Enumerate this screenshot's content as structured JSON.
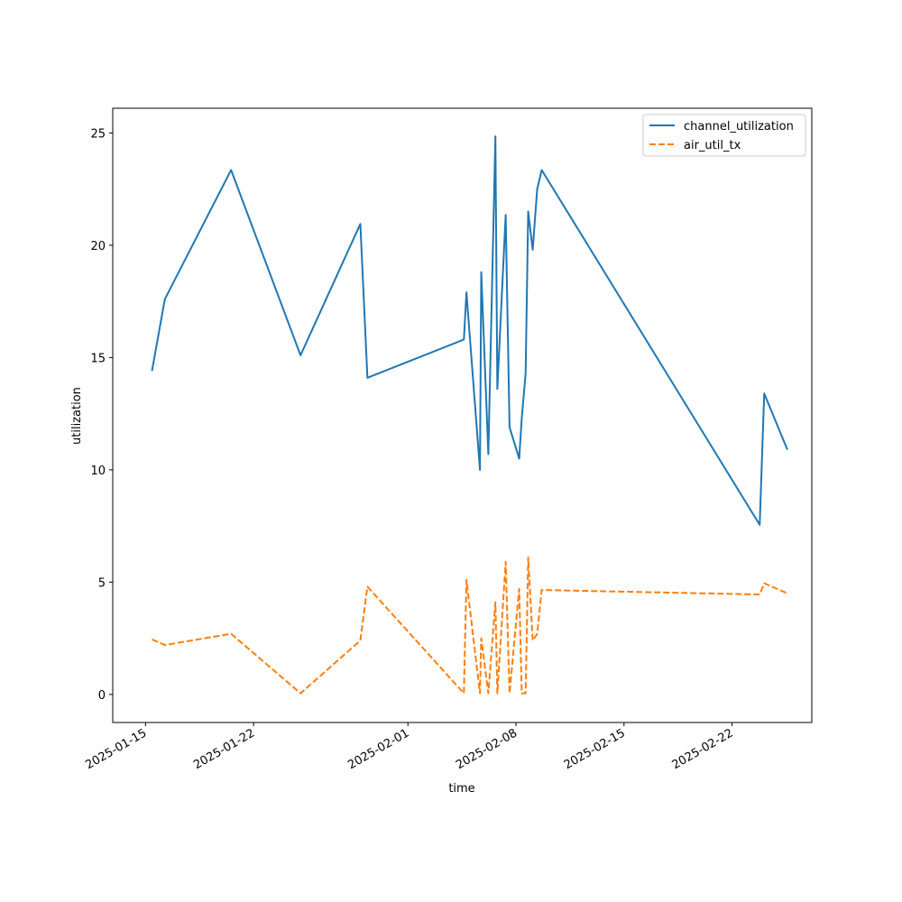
{
  "chart_data": {
    "type": "line",
    "title": "",
    "xlabel": "time",
    "ylabel": "utilization",
    "xlim": [
      "2025-01-12T21:00",
      "2025-02-27T04:00"
    ],
    "ylim": [
      -1.25,
      26.1
    ],
    "y_ticks": [
      0,
      5,
      10,
      15,
      20,
      25
    ],
    "x_ticks": [
      "2025-01-15",
      "2025-01-22",
      "2025-02-01",
      "2025-02-08",
      "2025-02-15",
      "2025-02-22"
    ],
    "grid": false,
    "legend": "top-right",
    "series": [
      {
        "name": "channel_utilization",
        "color": "#1f77b4",
        "style": "solid",
        "points": [
          [
            "2025-01-15T10:00",
            14.4
          ],
          [
            "2025-01-16T06:00",
            17.6
          ],
          [
            "2025-01-20T13:00",
            23.35
          ],
          [
            "2025-01-25T01:00",
            15.1
          ],
          [
            "2025-01-28T22:00",
            20.95
          ],
          [
            "2025-01-29T09:00",
            14.1
          ],
          [
            "2025-02-04T15:00",
            15.8
          ],
          [
            "2025-02-04T19:00",
            17.9
          ],
          [
            "2025-02-05T16:00",
            10.0
          ],
          [
            "2025-02-05T18:00",
            18.8
          ],
          [
            "2025-02-06T05:00",
            10.7
          ],
          [
            "2025-02-06T16:00",
            24.85
          ],
          [
            "2025-02-06T19:00",
            13.6
          ],
          [
            "2025-02-07T08:00",
            21.35
          ],
          [
            "2025-02-07T14:00",
            11.9
          ],
          [
            "2025-02-08T05:00",
            10.5
          ],
          [
            "2025-02-08T09:00",
            12.3
          ],
          [
            "2025-02-08T15:00",
            14.3
          ],
          [
            "2025-02-08T19:00",
            21.5
          ],
          [
            "2025-02-09T02:00",
            19.8
          ],
          [
            "2025-02-09T09:00",
            22.5
          ],
          [
            "2025-02-09T16:00",
            23.35
          ],
          [
            "2025-02-23T19:00",
            7.55
          ],
          [
            "2025-02-24T02:00",
            13.4
          ],
          [
            "2025-02-25T14:00",
            10.9
          ]
        ]
      },
      {
        "name": "air_util_tx",
        "color": "#ff7f0e",
        "style": "dashed",
        "points": [
          [
            "2025-01-15T10:00",
            2.45
          ],
          [
            "2025-01-16T06:00",
            2.2
          ],
          [
            "2025-01-20T13:00",
            2.7
          ],
          [
            "2025-01-25T01:00",
            0.05
          ],
          [
            "2025-01-28T22:00",
            2.4
          ],
          [
            "2025-01-29T09:00",
            4.8
          ],
          [
            "2025-02-04T15:00",
            0.05
          ],
          [
            "2025-02-04T19:00",
            5.1
          ],
          [
            "2025-02-05T16:00",
            0.05
          ],
          [
            "2025-02-05T18:00",
            2.5
          ],
          [
            "2025-02-06T05:00",
            0.05
          ],
          [
            "2025-02-06T16:00",
            4.1
          ],
          [
            "2025-02-06T19:00",
            0.05
          ],
          [
            "2025-02-07T08:00",
            5.9
          ],
          [
            "2025-02-07T14:00",
            0.05
          ],
          [
            "2025-02-08T05:00",
            4.7
          ],
          [
            "2025-02-08T09:00",
            0.05
          ],
          [
            "2025-02-08T15:00",
            0.05
          ],
          [
            "2025-02-08T19:00",
            6.1
          ],
          [
            "2025-02-09T02:00",
            2.4
          ],
          [
            "2025-02-09T09:00",
            2.7
          ],
          [
            "2025-02-09T16:00",
            4.65
          ],
          [
            "2025-02-23T19:00",
            4.45
          ],
          [
            "2025-02-24T02:00",
            4.95
          ],
          [
            "2025-02-25T14:00",
            4.5
          ]
        ]
      }
    ]
  }
}
